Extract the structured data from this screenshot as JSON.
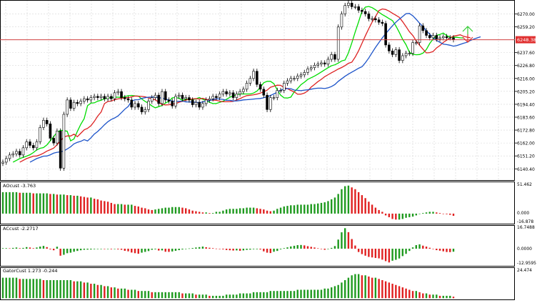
{
  "chart_data": [
    {
      "type": "candlestick",
      "panel": "main",
      "ylim": [
        6131,
        6281
      ],
      "price_ticks": [
        "6270.00",
        "6259.20",
        "6237.60",
        "6226.80",
        "6216.00",
        "6205.20",
        "6194.40",
        "6183.60",
        "6172.80",
        "6162.00",
        "6151.20",
        "6140.40"
      ],
      "current_price_label": "6248.38",
      "current_price": 6248.38,
      "closes": [
        6146,
        6149,
        6152,
        6153,
        6155,
        6152,
        6158,
        6163,
        6160,
        6158,
        6163,
        6175,
        6181,
        6178,
        6166,
        6162,
        6172,
        6141,
        6186,
        6198,
        6191,
        6196,
        6195,
        6197,
        6199,
        6198,
        6200,
        6201,
        6200,
        6201,
        6199,
        6201,
        6199,
        6204,
        6205,
        6200,
        6199,
        6198,
        6192,
        6195,
        6192,
        6188,
        6190,
        6197,
        6200,
        6202,
        6195,
        6205,
        6198,
        6197,
        6193,
        6201,
        6202,
        6199,
        6200,
        6198,
        6194,
        6196,
        6192,
        6195,
        6198,
        6199,
        6201,
        6200,
        6203,
        6205,
        6203,
        6204,
        6200,
        6203,
        6205,
        6207,
        6212,
        6216,
        6222,
        6211,
        6207,
        6202,
        6190,
        6200,
        6200,
        6206,
        6206,
        6212,
        6214,
        6216,
        6216,
        6218,
        6219,
        6221,
        6224,
        6225,
        6227,
        6228,
        6229,
        6228,
        6232,
        6236,
        6232,
        6259,
        6270,
        6277,
        6279,
        6276,
        6276,
        6273,
        6272,
        6270,
        6266,
        6266,
        6265,
        6263,
        6262,
        6244,
        6239,
        6236,
        6240,
        6231,
        6235,
        6237,
        6237,
        6246,
        6246,
        6260,
        6256,
        6252,
        6250,
        6252,
        6249,
        6250,
        6251,
        6250,
        6250,
        6248.38
      ],
      "series": [
        {
          "name": "",
          "color": "#00dd00"
        },
        {
          "name": "",
          "color": "#dd2222"
        },
        {
          "name": "",
          "color": "#1c53c9"
        }
      ]
    },
    {
      "type": "bar",
      "panel": "indicator-1",
      "title": "AOcust -3.763",
      "ylim": [
        -16.878,
        51.462
      ],
      "ticks": [
        "51.462",
        "0.000",
        "-16.878"
      ],
      "values": [
        36,
        36,
        36,
        36,
        36,
        35,
        35,
        35,
        35,
        34,
        34,
        34,
        34,
        34,
        33,
        33,
        32,
        32,
        32,
        31,
        31,
        30,
        30,
        29,
        28,
        27,
        27,
        25,
        24,
        22,
        21,
        20,
        18,
        16,
        16,
        16,
        15,
        15,
        15,
        13,
        12,
        10,
        9,
        7,
        6,
        7,
        8,
        9,
        10,
        10,
        11,
        11,
        11,
        10,
        9,
        7,
        5,
        4,
        3,
        2,
        2,
        1,
        1,
        3,
        3,
        5,
        7,
        8,
        8,
        8,
        9,
        9,
        10,
        10,
        10,
        9,
        8,
        7,
        5,
        4,
        5,
        8,
        10,
        12,
        13,
        14,
        14,
        15,
        15,
        15,
        15,
        16,
        16,
        17,
        18,
        19,
        21,
        24,
        27,
        33,
        41,
        46,
        47,
        44,
        41,
        36,
        31,
        26,
        20,
        15,
        10,
        6,
        3,
        -3,
        -6,
        -9,
        -10,
        -10,
        -9,
        -7,
        -6,
        -5,
        -3,
        0,
        1,
        2,
        3,
        3,
        2,
        1,
        0,
        -1,
        -2,
        -3.763
      ]
    },
    {
      "type": "bar",
      "panel": "indicator-2",
      "title": "ACcust -2.2717",
      "ylim": [
        -12.9595,
        16.7488
      ],
      "ticks": [
        "16.7488",
        "0.0000",
        "-12.9595"
      ],
      "values": [
        0.4,
        0.4,
        0.3,
        0.6,
        0.9,
        0.4,
        0.6,
        1.2,
        0.9,
        0.4,
        0.9,
        1.6,
        2.1,
        1.2,
        -0.5,
        -1.2,
        1.5,
        -5.3,
        -4.6,
        -3.4,
        -3.0,
        -2.3,
        -1.7,
        -1.2,
        -0.8,
        -0.7,
        -0.6,
        -0.4,
        -0.3,
        -0.1,
        -0.3,
        -0.2,
        -0.4,
        -0.3,
        -0.5,
        -0.8,
        -1.6,
        -2.0,
        -2.9,
        -3.4,
        -3.8,
        -3.0,
        -2.4,
        -1.8,
        -0.8,
        -0.5,
        -1.4,
        -1.3,
        -2.3,
        -2.4,
        -2.1,
        -1.6,
        -1.1,
        -0.6,
        -0.2,
        0.2,
        0.5,
        0.9,
        1.2,
        1.6,
        1.1,
        0.7,
        0.4,
        0.1,
        -0.2,
        -0.5,
        -1.0,
        -1.2,
        -1.4,
        -1.3,
        -1.6,
        -1.3,
        -0.9,
        -0.7,
        -0.4,
        -0.4,
        -0.6,
        -2.0,
        -3.0,
        -3.3,
        -2.3,
        -1.7,
        -0.5,
        0.4,
        1.0,
        1.7,
        2.2,
        2.7,
        2.8,
        2.5,
        1.9,
        1.4,
        0.9,
        0.3,
        -0.3,
        -0.8,
        -0.3,
        0.6,
        2.0,
        6.9,
        12.4,
        15.5,
        12.5,
        7.3,
        2.4,
        -2.5,
        -4.1,
        -5.3,
        -6.2,
        -6.6,
        -7.0,
        -7.3,
        -8.3,
        -9.4,
        -10.4,
        -9.1,
        -8.4,
        -7.4,
        -5.6,
        -3.9,
        -1.7,
        1.0,
        2.7,
        3.3,
        2.3,
        1.6,
        0.7,
        -0.3,
        -1.1,
        -1.5,
        -2.0,
        -2.5,
        -2.6,
        -2.2717
      ]
    },
    {
      "type": "bar",
      "panel": "indicator-3",
      "title": "GatorCust 1.273 -0.244",
      "ylim": [
        -1,
        24.474
      ],
      "ticks": [
        "24.474"
      ],
      "values": [
        17,
        17,
        17,
        17,
        17,
        16,
        16,
        16,
        16,
        16,
        16,
        16,
        15,
        15,
        15,
        15,
        15,
        15,
        15,
        15,
        15,
        14,
        14,
        14,
        13,
        13,
        12,
        12,
        11,
        11,
        10,
        10,
        9,
        9,
        8,
        8,
        8,
        7,
        7,
        7,
        6,
        6,
        6,
        6,
        5,
        5,
        5,
        5,
        5,
        5,
        5,
        5,
        5,
        4,
        4,
        4,
        4,
        3,
        3,
        3,
        3,
        2,
        2,
        2,
        2,
        2,
        3,
        3,
        3,
        3,
        4,
        4,
        4,
        4,
        5,
        5,
        5,
        5,
        5,
        6,
        6,
        6,
        6,
        6,
        6,
        6,
        6,
        7,
        7,
        7,
        7,
        7,
        7,
        7,
        7,
        8,
        8,
        9,
        10,
        11,
        13,
        15,
        17,
        19,
        20,
        20,
        19,
        19,
        18,
        17,
        17,
        16,
        15,
        14,
        13,
        12,
        11,
        10,
        9,
        8,
        7,
        6,
        6,
        5,
        4,
        4,
        3,
        3,
        3,
        2,
        2,
        2,
        2,
        1.273
      ]
    }
  ]
}
